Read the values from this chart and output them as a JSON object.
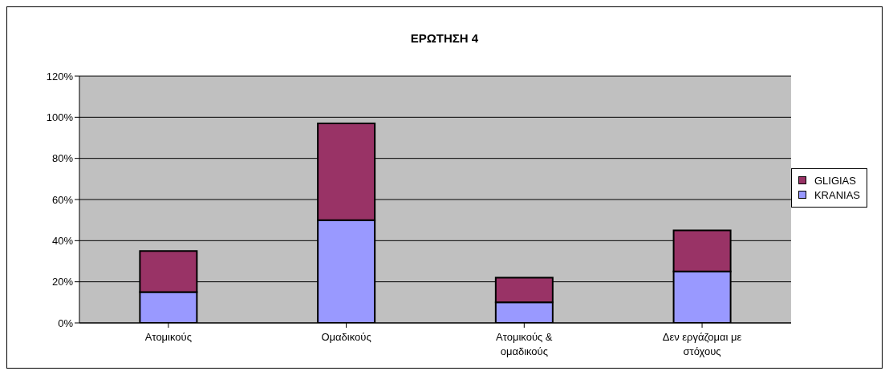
{
  "chart_data": {
    "type": "bar",
    "title": "ΕΡΩΤΗΣΗ 4",
    "categories": [
      "Ατομικούς",
      "Ομαδικούς",
      "Ατομικούς & ομαδικούς",
      "Δεν εργάζομαι με στόχους"
    ],
    "series": [
      {
        "name": "KRANIAS",
        "color": "#9999ff",
        "values": [
          15,
          50,
          10,
          25
        ]
      },
      {
        "name": "GLIGIAS",
        "color": "#993366",
        "values": [
          20,
          47,
          12,
          20
        ]
      }
    ],
    "stacked": true,
    "ylim": [
      0,
      120
    ],
    "yticks": [
      {
        "value": 0,
        "label": "0%"
      },
      {
        "value": 20,
        "label": "20%"
      },
      {
        "value": 40,
        "label": "40%"
      },
      {
        "value": 60,
        "label": "60%"
      },
      {
        "value": 80,
        "label": "80%"
      },
      {
        "value": 100,
        "label": "100%"
      },
      {
        "value": 120,
        "label": "120%"
      }
    ],
    "grid": "y",
    "legend": "right"
  }
}
